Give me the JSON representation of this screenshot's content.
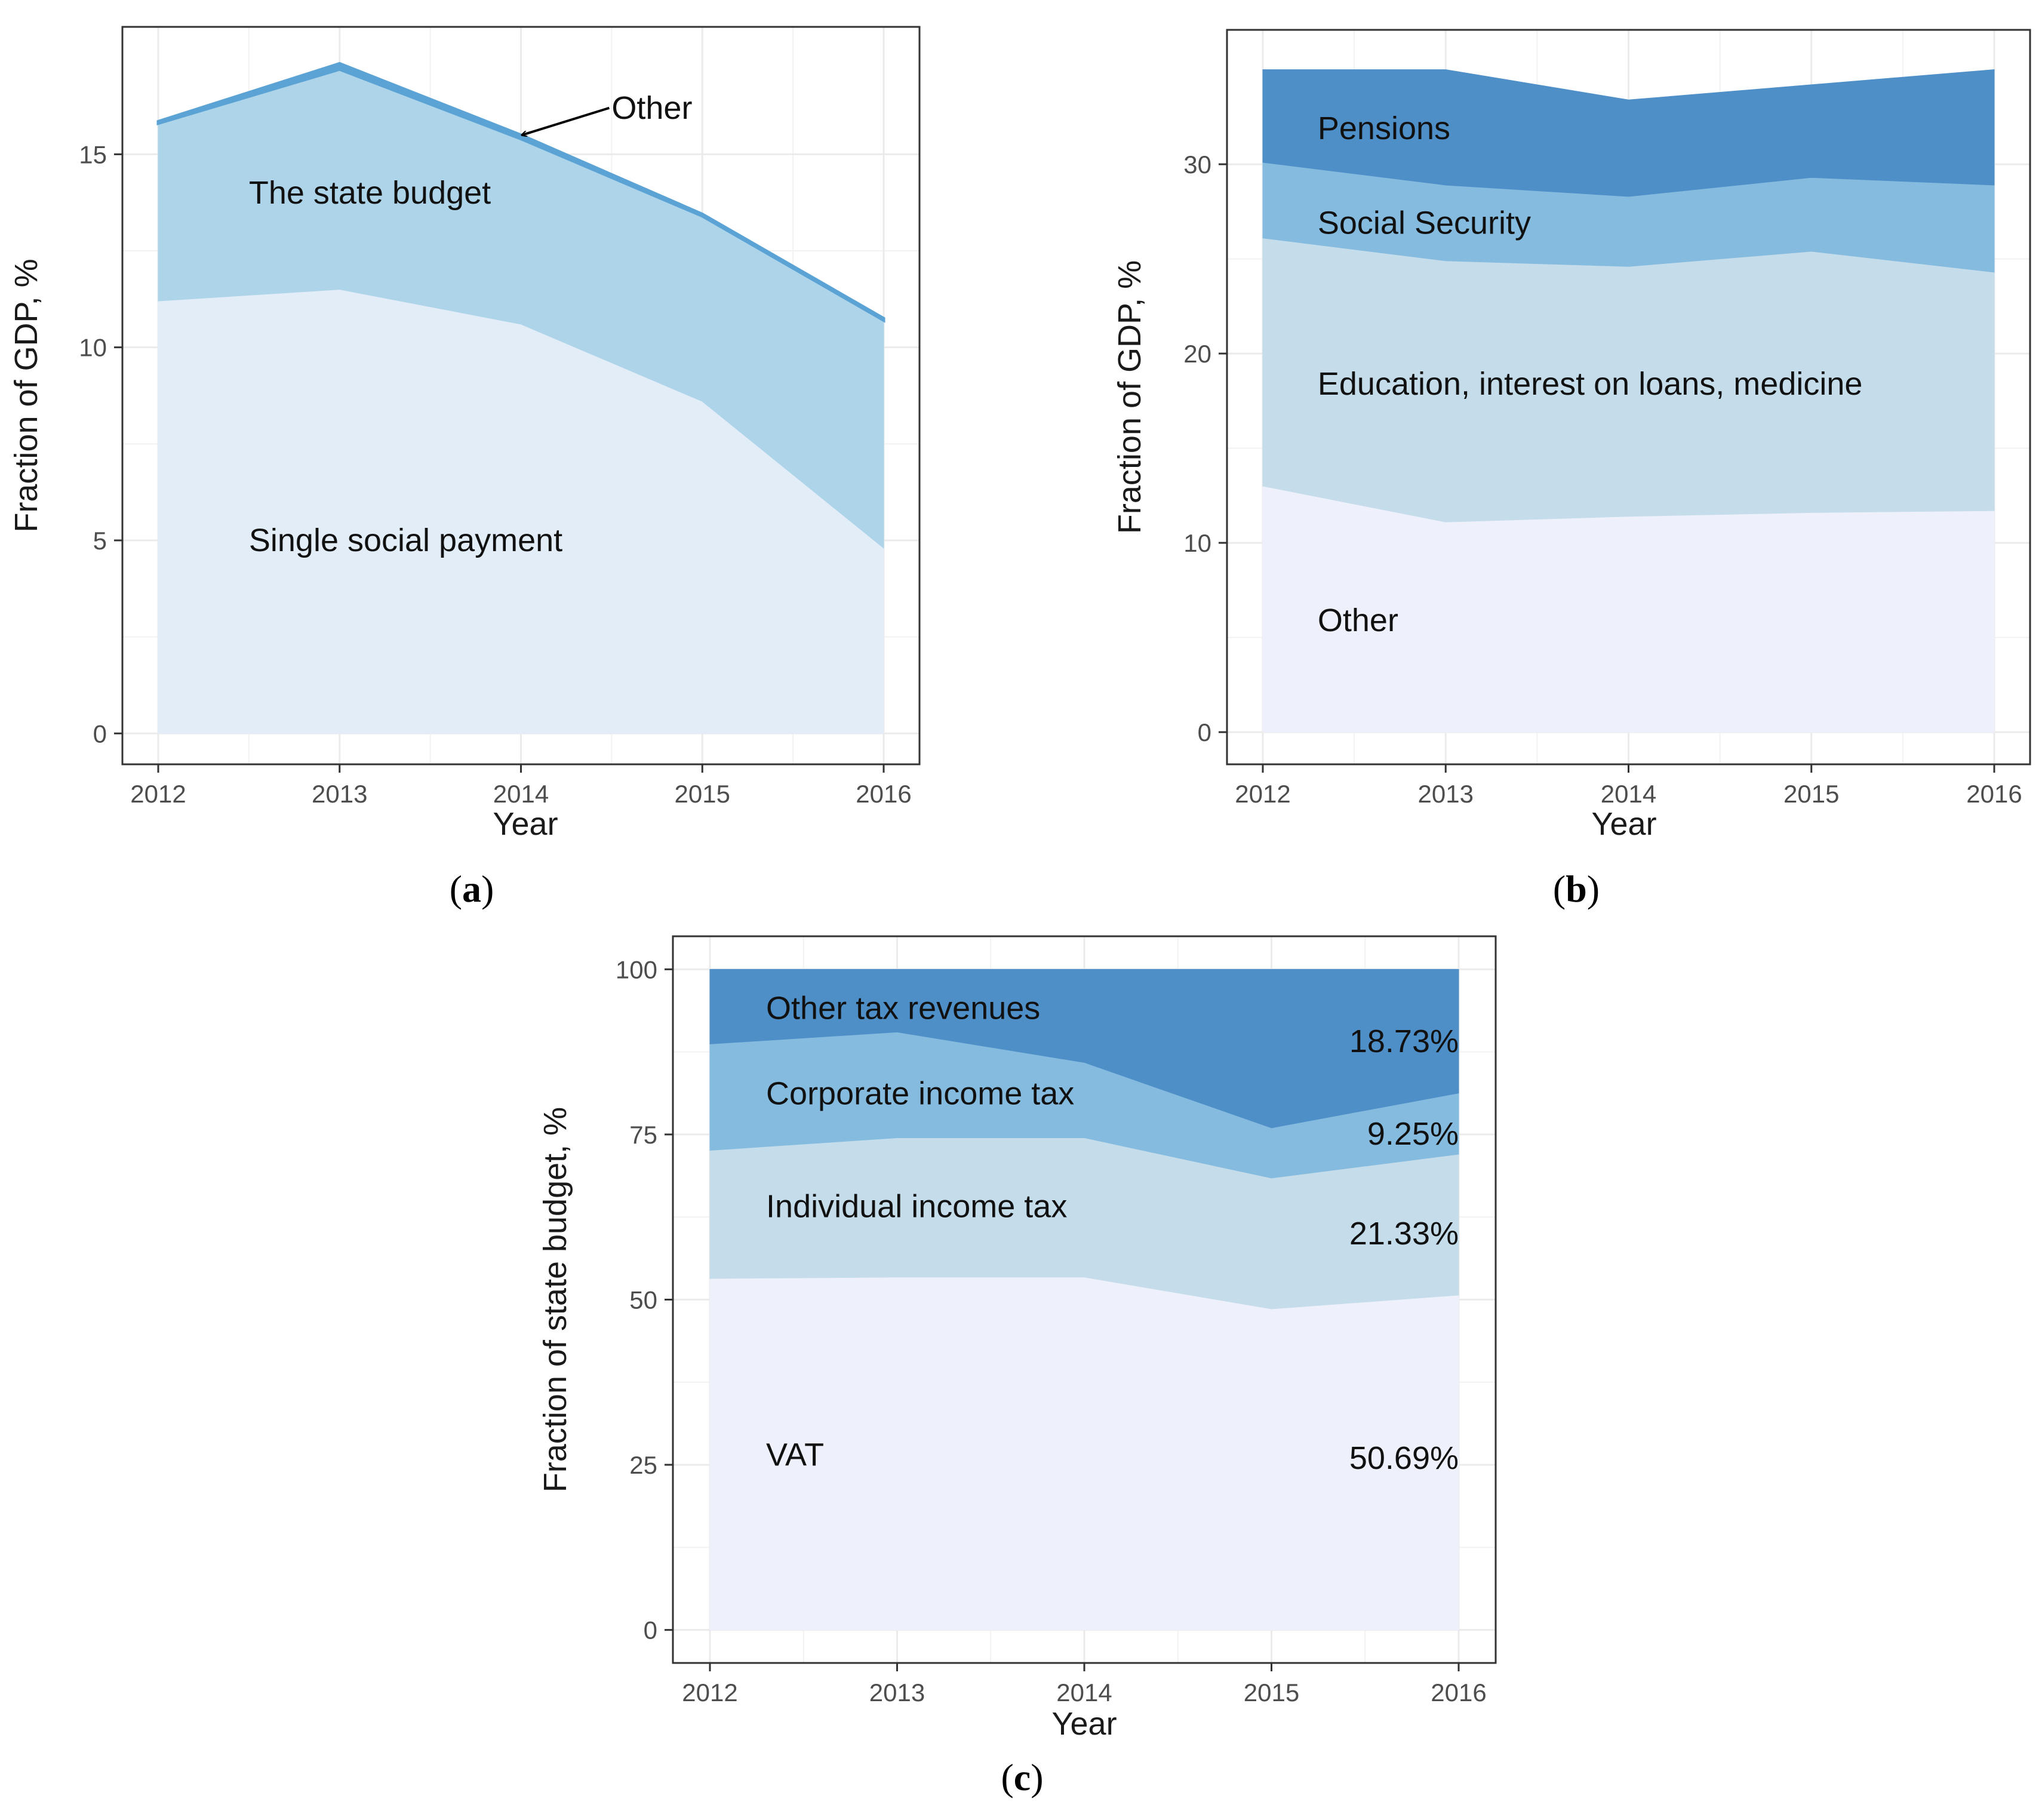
{
  "figure": {
    "caption_open": "(",
    "caption_close": ")"
  },
  "chart_data": [
    {
      "id": "a",
      "type": "area",
      "stacked": true,
      "caption": "a",
      "xlabel": "Year",
      "ylabel": "Fraction of GDP, %",
      "x": [
        2012,
        2013,
        2014,
        2015,
        2016
      ],
      "xticks": [
        "2012",
        "2013",
        "2014",
        "2015",
        "2016"
      ],
      "ylim": [
        -0.8,
        18.3
      ],
      "yticks": [
        0,
        5,
        10,
        15
      ],
      "ytick_labels": [
        "0",
        "5",
        "10",
        "15"
      ],
      "grid": true,
      "series": [
        {
          "name": "Single social payment",
          "values": [
            11.2,
            11.5,
            10.6,
            8.6,
            4.8
          ],
          "color": "#e3edf8"
        },
        {
          "name": "The state budget",
          "values": [
            4.6,
            5.7,
            4.8,
            4.8,
            5.9
          ],
          "color": "#aed4e9"
        },
        {
          "name": "Other",
          "values": [
            0.05,
            0.15,
            0.1,
            0.05,
            0.05
          ],
          "color": "#5ba3d4"
        }
      ],
      "annotations": [
        {
          "text": "Single social payment",
          "series": "Single social payment",
          "x": 2012.5,
          "y": 5
        },
        {
          "text": "The state budget",
          "series": "The state budget",
          "x": 2012.5,
          "y": 14
        },
        {
          "text": "Other",
          "series": "Other",
          "x": 2014.5,
          "y": 16.2,
          "arrow_to": [
            2014,
            15.5
          ]
        }
      ]
    },
    {
      "id": "b",
      "type": "area",
      "stacked": true,
      "caption": "b",
      "xlabel": "Year",
      "ylabel": "Fraction of GDP, %",
      "x": [
        2012,
        2013,
        2014,
        2015,
        2016
      ],
      "xticks": [
        "2012",
        "2013",
        "2014",
        "2015",
        "2016"
      ],
      "ylim": [
        -1.7,
        37.1
      ],
      "yticks": [
        0,
        10,
        20,
        30
      ],
      "ytick_labels": [
        "0",
        "10",
        "20",
        "30"
      ],
      "grid": true,
      "series": [
        {
          "name": "Other",
          "values": [
            13.0,
            11.1,
            11.4,
            11.6,
            11.7
          ],
          "color": "#eef1fb"
        },
        {
          "name": "Education, interest on loans, medicine",
          "values": [
            13.1,
            13.8,
            13.2,
            13.8,
            12.6
          ],
          "color": "#c5dcea"
        },
        {
          "name": "Social Security",
          "values": [
            4.0,
            4.0,
            3.7,
            3.9,
            4.6
          ],
          "color": "#85bbdf"
        },
        {
          "name": "Pensions",
          "values": [
            4.9,
            6.1,
            5.1,
            4.9,
            6.1
          ],
          "color": "#4e8fc8"
        }
      ],
      "annotations": [
        {
          "text": "Pensions",
          "series": "Pensions",
          "x": 2012.3,
          "y": 31.9
        },
        {
          "text": "Social Security",
          "series": "Social Security",
          "x": 2012.3,
          "y": 26.9
        },
        {
          "text": "Education, interest on loans, medicine",
          "series": "Education, interest on loans, medicine",
          "x": 2012.3,
          "y": 18.4
        },
        {
          "text": "Other",
          "series": "Other",
          "x": 2012.3,
          "y": 5.9
        }
      ]
    },
    {
      "id": "c",
      "type": "area",
      "stacked": true,
      "caption": "c",
      "xlabel": "Year",
      "ylabel": "Fraction of state budget, %",
      "x": [
        2012,
        2013,
        2014,
        2015,
        2016
      ],
      "xticks": [
        "2012",
        "2013",
        "2014",
        "2015",
        "2016"
      ],
      "ylim": [
        -5,
        105
      ],
      "yticks": [
        0,
        25,
        50,
        75,
        100
      ],
      "ytick_labels": [
        "0",
        "25",
        "50",
        "75",
        "100"
      ],
      "grid": true,
      "series": [
        {
          "name": "VAT",
          "values": [
            53.2,
            53.4,
            53.4,
            48.6,
            50.69
          ],
          "color": "#eef1fb"
        },
        {
          "name": "Individual income tax",
          "values": [
            19.4,
            21.1,
            21.1,
            19.8,
            21.33
          ],
          "color": "#c5dcea"
        },
        {
          "name": "Corporate income tax",
          "values": [
            16.1,
            16.0,
            11.4,
            7.6,
            9.25
          ],
          "color": "#85bbdf"
        },
        {
          "name": "Other tax revenues",
          "values": [
            11.3,
            9.5,
            14.1,
            24.0,
            18.73
          ],
          "color": "#4e8fc8"
        }
      ],
      "annotations": [
        {
          "text": "Other tax revenues",
          "series": "Other tax revenues",
          "x": 2012.3,
          "y": 94.1
        },
        {
          "text": "Corporate income tax",
          "series": "Corporate income tax",
          "x": 2012.3,
          "y": 81.2
        },
        {
          "text": "Individual income tax",
          "series": "Individual income tax",
          "x": 2012.3,
          "y": 64.1
        },
        {
          "text": "VAT",
          "series": "VAT",
          "x": 2012.3,
          "y": 26.5
        },
        {
          "text": "18.73%",
          "series": "Other tax revenues",
          "x": 2016,
          "y": 89.1,
          "anchor": "end"
        },
        {
          "text": "9.25%",
          "series": "Corporate income tax",
          "x": 2016,
          "y": 75.1,
          "anchor": "end"
        },
        {
          "text": "21.33%",
          "series": "Individual income tax",
          "x": 2016,
          "y": 60.0,
          "anchor": "end"
        },
        {
          "text": "50.69%",
          "series": "VAT",
          "x": 2016,
          "y": 26.0,
          "anchor": "end"
        }
      ]
    }
  ]
}
